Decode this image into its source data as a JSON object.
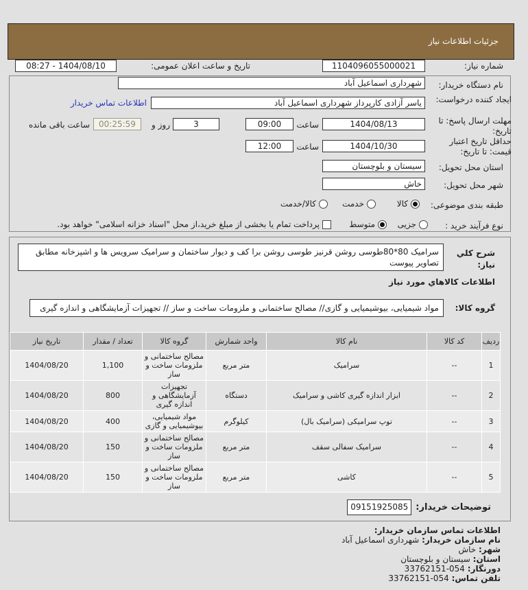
{
  "header": {
    "title": "جزئيات اطلاعات نیاز"
  },
  "form": {
    "need_number_label": "شماره نیاز:",
    "need_number": "1104096055000021",
    "announce_label": "تاریخ و ساعت اعلان عمومی:",
    "announce_value": "1404/08/10 - 08:27",
    "buyer_org_label": "نام دستگاه خریدار:",
    "buyer_org": "شهرداری اسماعیل آباد",
    "creator_label": "ایجاد کننده درخواست:",
    "creator": "یاسر آزادی کارپرداز شهرداری اسماعیل آباد",
    "contact_link": "اطلاعات تماس خریدار",
    "deadline_label": "مهلت ارسال پاسخ: تا تاریخ:",
    "deadline_date": "1404/08/13",
    "time_label": "ساعت",
    "deadline_time": "09:00",
    "days": "3",
    "days_label": "روز و",
    "remaining": "00:25:59",
    "remaining_label": "ساعت باقی مانده",
    "validity_label": "حداقل تاریخ اعتبار قیمت: تا تاریخ:",
    "validity_date": "1404/10/30",
    "validity_time": "12:00",
    "province_label": "استان محل تحویل:",
    "province": "سیستان و بلوچستان",
    "city_label": "شهر محل تحویل:",
    "city": "خاش",
    "category_label": "طبقه بندی موضوعی:",
    "category_options": [
      {
        "label": "کالا",
        "selected": true
      },
      {
        "label": "خدمت",
        "selected": false
      },
      {
        "label": "کالا/خدمت",
        "selected": false
      }
    ],
    "process_label": "نوع فرآیند خرید :",
    "process_options": [
      {
        "label": "جزیی",
        "selected": false
      },
      {
        "label": "متوسط",
        "selected": true
      }
    ],
    "payment_note": "پرداخت تمام یا بخشی از مبلغ خرید،از محل \"اسناد خزانه اسلامی\" خواهد بود.",
    "payment_checked": false
  },
  "details": {
    "desc_label": "شرح کلي نياز:",
    "desc": "سرامیک 80*80طوسی روشن قرنیز طوسی روشن برا کف و دیوار ساختمان و سرامیک سرویس ها و اشپزخانه مطابق تصاویر پیوست",
    "goods_heading": "اطلاعات کالاهاي مورد نياز",
    "group_label": "گروه کالا:",
    "group": "مواد شیمیایی، بیوشیمیایی و گازی// مصالح ساختمانی و ملزومات ساخت و ساز // تجهیزات آزمایشگاهی و اندازه گیری",
    "table": {
      "headers": [
        "ردیف",
        "کد کالا",
        "نام کالا",
        "واحد شمارش",
        "گروه کالا",
        "تعداد / مقدار",
        "تاریخ نیاز"
      ],
      "rows": [
        [
          "1",
          "--",
          "سرامیک",
          "متر مربع",
          "مصالح ساختمانی و ملزومات ساخت و ساز",
          "1,100",
          "1404/08/20"
        ],
        [
          "2",
          "--",
          "ابزار اندازه گیری کاشی و سرامیک",
          "دستگاه",
          "تجهیزات آزمایشگاهی و اندازه گیری",
          "800",
          "1404/08/20"
        ],
        [
          "3",
          "--",
          "توپ سرامیکی (سرامیک بال)",
          "کیلوگرم",
          "مواد شیمیایی، بیوشیمیایی و گازی",
          "400",
          "1404/08/20"
        ],
        [
          "4",
          "--",
          "سرامیک سفالی سقف",
          "متر مربع",
          "مصالح ساختمانی و ملزومات ساخت و ساز",
          "150",
          "1404/08/20"
        ],
        [
          "5",
          "--",
          "کاشی",
          "متر مربع",
          "مصالح ساختمانی و ملزومات ساخت و ساز",
          "150",
          "1404/08/20"
        ]
      ]
    },
    "notes_label": "توضیحات خریدار:",
    "notes": "09151925085"
  },
  "contact": {
    "title": "اطلاعات تماس سازمان خریدار:",
    "org_label": "نام سازمان خریدار:",
    "org": "شهرداری اسماعیل آباد",
    "city_label": "شهر:",
    "city": "خاش",
    "province_label": "استان:",
    "province": "سیستان و بلوچستان",
    "fax_label": "دورنگار:",
    "fax": "054-33762151",
    "phone_label": "تلفن تماس:",
    "phone": "054-33762151"
  },
  "colors": {
    "header": "#8c6d42",
    "link": "#2535b8"
  }
}
